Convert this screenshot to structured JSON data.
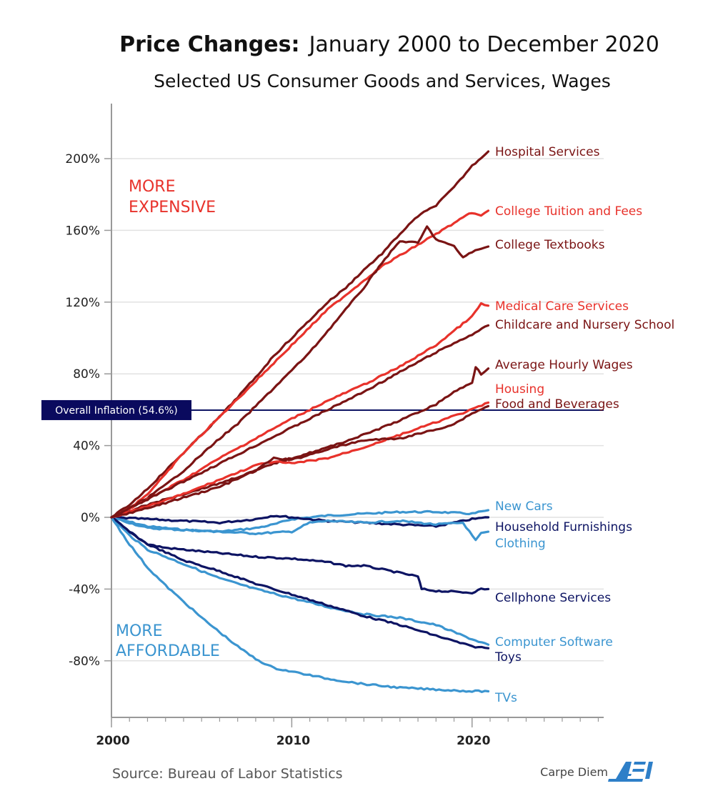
{
  "chart_data": {
    "type": "line",
    "title_bold": "Price Changes:",
    "title_rest": "January 2000 to December 2020",
    "subtitle": "Selected US Consumer Goods and Services, Wages",
    "xlabel": "",
    "ylabel": "",
    "xlim": [
      2000,
      2027.3
    ],
    "ylim": [
      -112,
      230
    ],
    "x_ticks": [
      2000,
      2010,
      2020
    ],
    "x_tick_labels": [
      "2000",
      "2010",
      "2020"
    ],
    "y_ticks": [
      -80,
      -40,
      0,
      40,
      80,
      120,
      160,
      200
    ],
    "y_tick_labels": [
      "-80%",
      "-40%",
      "0%",
      "40%",
      "80%",
      "120%",
      "160%",
      "200%"
    ],
    "grid": "horizontal",
    "zone_labels": {
      "expensive": [
        "MORE",
        "EXPENSIVE"
      ],
      "affordable": [
        "MORE",
        "AFFORDABLE"
      ]
    },
    "reference_line": {
      "label": "Overall Inflation (54.6%)",
      "value": 54.6
    },
    "colors": {
      "red": "#e8322b",
      "dark_red": "#7a1414",
      "light_blue": "#3b95d0",
      "navy": "#0d1463",
      "inflation_box": "#0a0a5e",
      "grid": "#e2e2e2",
      "axis": "#999999"
    },
    "series": [
      {
        "name": "Hospital Services",
        "color_key": "dark_red",
        "label_color_key": "dark_red",
        "x": [
          2000,
          2001,
          2002,
          2003,
          2004,
          2005,
          2006,
          2007,
          2008,
          2009,
          2010,
          2011,
          2012,
          2013,
          2014,
          2015,
          2016,
          2017,
          2018,
          2019,
          2020,
          2020.9
        ],
        "y": [
          0,
          7,
          16,
          26,
          36,
          46,
          56,
          67,
          78,
          90,
          100,
          110,
          120,
          128,
          138,
          147,
          158,
          168,
          174,
          184,
          196,
          204
        ]
      },
      {
        "name": "College Tuition and Fees",
        "color_key": "red",
        "label_color_key": "red",
        "x": [
          2000,
          2001,
          2002,
          2003,
          2004,
          2005,
          2006,
          2007,
          2008,
          2009,
          2010,
          2011,
          2012,
          2013,
          2014,
          2015,
          2016,
          2017,
          2018,
          2019,
          2020,
          2020.5,
          2020.9
        ],
        "y": [
          0,
          5,
          13,
          24,
          36,
          46,
          56,
          66,
          76,
          86,
          96,
          106,
          116,
          124,
          132,
          140,
          146,
          152,
          158,
          164,
          170,
          168,
          171
        ]
      },
      {
        "name": "College Textbooks",
        "color_key": "dark_red",
        "label_color_key": "dark_red",
        "x": [
          2000,
          2001,
          2002,
          2003,
          2004,
          2005,
          2006,
          2007,
          2008,
          2009,
          2010,
          2011,
          2012,
          2013,
          2014,
          2015,
          2016,
          2017,
          2017.5,
          2018,
          2019,
          2019.5,
          2020,
          2020.9
        ],
        "y": [
          0,
          5,
          11,
          18,
          26,
          35,
          44,
          52,
          62,
          72,
          82,
          92,
          104,
          116,
          128,
          142,
          154,
          153,
          162,
          155,
          151,
          145,
          148,
          151
        ]
      },
      {
        "name": "Medical Care Services",
        "color_key": "red",
        "label_color_key": "red",
        "x": [
          2000,
          2002,
          2004,
          2006,
          2008,
          2010,
          2012,
          2014,
          2016,
          2018,
          2019,
          2020,
          2020.5,
          2020.9
        ],
        "y": [
          0,
          10,
          21,
          33,
          44,
          55,
          65,
          74,
          84,
          96,
          104,
          112,
          119,
          118
        ]
      },
      {
        "name": "Childcare and Nursery School",
        "color_key": "dark_red",
        "label_color_key": "dark_red",
        "x": [
          2000,
          2002,
          2004,
          2006,
          2008,
          2010,
          2012,
          2014,
          2016,
          2018,
          2020,
          2020.9
        ],
        "y": [
          0,
          10,
          20,
          30,
          40,
          50,
          60,
          70,
          81,
          92,
          102,
          107
        ]
      },
      {
        "name": "Average Hourly Wages",
        "color_key": "dark_red",
        "label_color_key": "dark_red",
        "x": [
          2000,
          2002,
          2004,
          2006,
          2008,
          2009,
          2010,
          2012,
          2014,
          2016,
          2018,
          2019,
          2020,
          2020.2,
          2020.5,
          2020.9
        ],
        "y": [
          0,
          7,
          13,
          19,
          26,
          30,
          33,
          39,
          46,
          54,
          63,
          70,
          75,
          84,
          80,
          83
        ]
      },
      {
        "name": "Housing",
        "color_key": "red",
        "label_color_key": "red",
        "x": [
          2000,
          2002,
          2004,
          2006,
          2008,
          2009,
          2010,
          2012,
          2014,
          2016,
          2018,
          2020,
          2020.9
        ],
        "y": [
          0,
          6,
          13,
          21,
          29,
          31,
          30,
          33,
          39,
          46,
          53,
          60,
          64
        ]
      },
      {
        "name": "Food and Beverages",
        "color_key": "dark_red",
        "label_color_key": "dark_red",
        "x": [
          2000,
          2002,
          2004,
          2006,
          2008,
          2009,
          2010,
          2012,
          2014,
          2016,
          2018,
          2019,
          2020,
          2020.9
        ],
        "y": [
          0,
          5,
          11,
          17,
          26,
          33,
          32,
          38,
          43,
          44,
          49,
          52,
          58,
          62
        ]
      },
      {
        "name": "New Cars",
        "color_key": "light_blue",
        "label_color_key": "light_blue",
        "x": [
          2000,
          2002,
          2004,
          2006,
          2008,
          2009,
          2010,
          2012,
          2014,
          2016,
          2018,
          2020,
          2020.9
        ],
        "y": [
          0,
          -5,
          -7,
          -8,
          -6,
          -4,
          -1,
          1,
          2,
          3,
          3,
          2,
          4
        ]
      },
      {
        "name": "Household Furnishings",
        "color_key": "navy",
        "label_color_key": "navy",
        "x": [
          2000,
          2002,
          2004,
          2006,
          2008,
          2009,
          2010,
          2012,
          2014,
          2016,
          2018,
          2019,
          2020,
          2020.9
        ],
        "y": [
          0,
          -1,
          -2,
          -3,
          -1,
          1,
          0,
          -2,
          -3,
          -4,
          -5,
          -3,
          -1,
          0
        ]
      },
      {
        "name": "Clothing",
        "color_key": "light_blue",
        "label_color_key": "light_blue",
        "x": [
          2000,
          2002,
          2004,
          2006,
          2008,
          2010,
          2011,
          2012,
          2014,
          2016,
          2018,
          2019.5,
          2020.2,
          2020.5,
          2020.9
        ],
        "y": [
          0,
          -6,
          -7,
          -8,
          -9,
          -8,
          -3,
          -2,
          -3,
          -2,
          -4,
          -3,
          -13,
          -9,
          -8
        ]
      },
      {
        "name": "Cellphone Services",
        "color_key": "navy",
        "label_color_key": "navy",
        "x": [
          2000,
          2001,
          2002,
          2003,
          2004,
          2006,
          2008,
          2010,
          2012,
          2013,
          2014,
          2016,
          2017,
          2017.2,
          2018,
          2020,
          2020.5,
          2020.9
        ],
        "y": [
          0,
          -8,
          -15,
          -17,
          -18,
          -20,
          -22,
          -23,
          -25,
          -27,
          -27,
          -31,
          -33,
          -40,
          -41,
          -42,
          -40,
          -40
        ]
      },
      {
        "name": "Computer Software",
        "color_key": "light_blue",
        "label_color_key": "light_blue",
        "x": [
          2000,
          2001,
          2002,
          2004,
          2006,
          2008,
          2010,
          2012,
          2014,
          2016,
          2018,
          2020,
          2020.9
        ],
        "y": [
          0,
          -10,
          -18,
          -26,
          -34,
          -40,
          -45,
          -50,
          -54,
          -56,
          -60,
          -68,
          -71
        ]
      },
      {
        "name": "Toys",
        "color_key": "navy",
        "label_color_key": "navy",
        "x": [
          2000,
          2001,
          2002,
          2004,
          2006,
          2008,
          2010,
          2012,
          2014,
          2016,
          2018,
          2020,
          2020.9
        ],
        "y": [
          0,
          -8,
          -15,
          -24,
          -30,
          -37,
          -43,
          -49,
          -55,
          -60,
          -66,
          -72,
          -73
        ]
      },
      {
        "name": "TVs",
        "color_key": "light_blue",
        "label_color_key": "light_blue",
        "x": [
          2000,
          2001,
          2002,
          2003,
          2004,
          2005,
          2006,
          2007,
          2008,
          2009,
          2010,
          2012,
          2014,
          2016,
          2018,
          2020,
          2020.9
        ],
        "y": [
          0,
          -15,
          -28,
          -38,
          -47,
          -56,
          -64,
          -72,
          -79,
          -84,
          -86,
          -90,
          -93,
          -95,
          -96,
          -97,
          -97
        ]
      }
    ]
  },
  "footer": {
    "source": "Source: Bureau of Labor Statistics",
    "brand": "Carpe Diem",
    "logo": "AEI"
  }
}
